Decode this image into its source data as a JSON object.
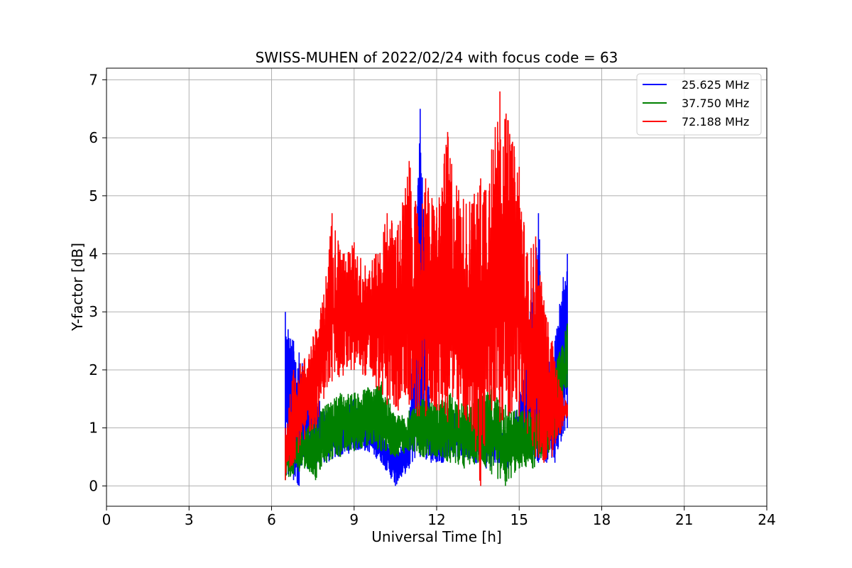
{
  "chart_data": {
    "type": "line",
    "title": "SWISS-MUHEN of 2022/02/24 with focus code = 63",
    "xlabel": "Universal Time [h]",
    "ylabel": "Y-factor [dB]",
    "xlim": [
      0,
      24
    ],
    "ylim": [
      -0.35,
      7.2
    ],
    "xticks": [
      0,
      3,
      6,
      9,
      12,
      15,
      18,
      21,
      24
    ],
    "yticks": [
      0,
      1,
      2,
      3,
      4,
      5,
      6,
      7
    ],
    "grid": true,
    "legend_position": "top-right",
    "series": [
      {
        "name": "25.625 MHz",
        "color": "#0000ff",
        "x": [
          6.5,
          6.6,
          6.8,
          7.0,
          7.3,
          7.6,
          8.0,
          8.5,
          9.0,
          9.5,
          10.0,
          10.5,
          11.0,
          11.4,
          11.8,
          12.2,
          12.6,
          13.0,
          13.4,
          13.8,
          14.2,
          14.6,
          15.0,
          15.4,
          15.7,
          16.0,
          16.3,
          16.6,
          16.75
        ],
        "values": [
          3.0,
          2.7,
          2.5,
          2.3,
          2.0,
          1.6,
          1.3,
          1.2,
          1.5,
          1.3,
          1.0,
          0.6,
          0.8,
          6.5,
          1.0,
          0.9,
          1.3,
          1.0,
          1.1,
          1.4,
          1.0,
          0.8,
          1.5,
          3.0,
          4.7,
          2.0,
          2.5,
          3.6,
          4.0
        ],
        "min": [
          0.4,
          0.2,
          0.1,
          0.0,
          0.3,
          0.4,
          0.4,
          0.5,
          0.6,
          0.6,
          0.4,
          0.0,
          0.3,
          0.5,
          0.4,
          0.4,
          0.5,
          0.5,
          0.4,
          0.3,
          0.4,
          0.3,
          0.6,
          0.5,
          0.4,
          0.4,
          0.4,
          0.9,
          1.0
        ]
      },
      {
        "name": "37.750 MHz",
        "color": "#008000",
        "x": [
          6.5,
          6.8,
          7.2,
          7.6,
          8.0,
          8.5,
          9.0,
          9.5,
          10.0,
          10.5,
          11.0,
          11.5,
          12.0,
          12.5,
          13.0,
          13.5,
          14.0,
          14.5,
          15.0,
          15.5,
          16.0,
          16.4,
          16.75
        ],
        "values": [
          0.8,
          0.9,
          1.0,
          1.2,
          1.4,
          1.6,
          1.6,
          1.7,
          1.8,
          1.2,
          1.3,
          1.5,
          1.4,
          1.6,
          1.4,
          1.5,
          1.7,
          1.4,
          1.3,
          1.3,
          1.4,
          2.2,
          2.8
        ],
        "min": [
          0.1,
          0.2,
          0.3,
          0.1,
          0.4,
          0.5,
          0.6,
          0.7,
          0.6,
          0.5,
          0.6,
          0.5,
          0.5,
          0.4,
          0.3,
          0.4,
          0.2,
          0.0,
          0.3,
          0.3,
          0.5,
          0.9,
          1.7
        ]
      },
      {
        "name": "72.188 MHz",
        "color": "#ff0000",
        "x": [
          6.5,
          6.8,
          7.2,
          7.6,
          7.9,
          8.2,
          8.6,
          9.0,
          9.4,
          9.8,
          10.2,
          10.6,
          11.0,
          11.3,
          11.6,
          12.0,
          12.4,
          12.8,
          13.2,
          13.6,
          14.0,
          14.3,
          14.6,
          15.0,
          15.3,
          15.6,
          15.9,
          16.2,
          16.5,
          16.75
        ],
        "values": [
          1.0,
          2.0,
          2.2,
          2.7,
          3.3,
          4.7,
          4.0,
          4.2,
          3.8,
          4.0,
          4.7,
          4.5,
          5.6,
          4.7,
          5.3,
          4.8,
          6.1,
          5.1,
          4.9,
          5.3,
          5.8,
          6.8,
          6.3,
          5.5,
          4.0,
          4.3,
          3.2,
          2.5,
          1.7,
          1.4
        ],
        "min": [
          0.1,
          0.4,
          0.8,
          1.0,
          1.5,
          1.8,
          1.9,
          2.0,
          1.9,
          1.7,
          1.4,
          1.3,
          1.4,
          1.2,
          1.2,
          1.3,
          1.1,
          1.0,
          1.1,
          0.0,
          1.3,
          1.1,
          1.2,
          1.2,
          0.9,
          0.5,
          0.4,
          0.5,
          0.9,
          1.2
        ]
      }
    ]
  }
}
